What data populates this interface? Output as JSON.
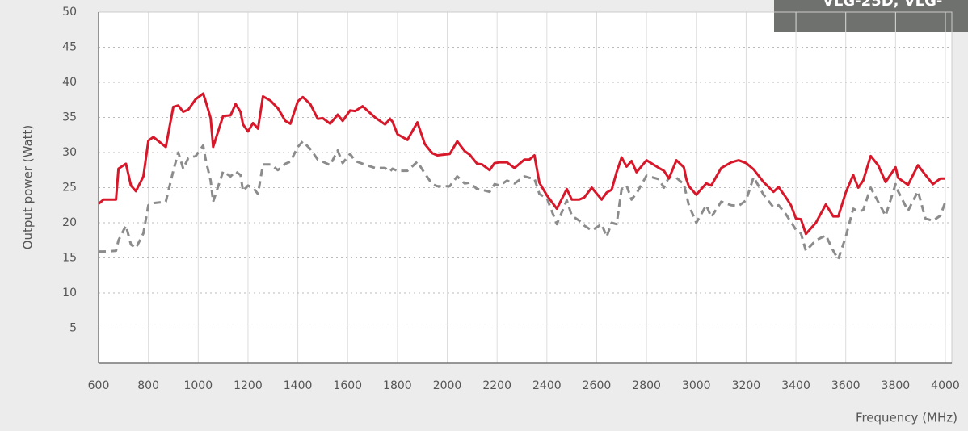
{
  "chart_data": {
    "type": "line",
    "banner": "VLG-25D, VLG-",
    "y_label": "Output power (Watt)",
    "x_label": "Frequency (MHz)",
    "x": [
      600,
      620,
      670,
      680,
      710,
      730,
      750,
      780,
      800,
      820,
      870,
      900,
      920,
      940,
      960,
      990,
      1020,
      1030,
      1050,
      1060,
      1100,
      1130,
      1150,
      1170,
      1180,
      1200,
      1220,
      1240,
      1260,
      1290,
      1320,
      1350,
      1370,
      1400,
      1420,
      1450,
      1480,
      1500,
      1530,
      1560,
      1580,
      1610,
      1630,
      1660,
      1710,
      1750,
      1770,
      1780,
      1800,
      1840,
      1880,
      1910,
      1940,
      1960,
      2010,
      2040,
      2070,
      2090,
      2120,
      2140,
      2170,
      2190,
      2210,
      2240,
      2270,
      2310,
      2330,
      2350,
      2370,
      2400,
      2440,
      2480,
      2500,
      2530,
      2550,
      2580,
      2620,
      2640,
      2660,
      2680,
      2700,
      2720,
      2740,
      2760,
      2800,
      2850,
      2870,
      2890,
      2920,
      2950,
      2960,
      2970,
      3000,
      3040,
      3060,
      3100,
      3140,
      3170,
      3200,
      3230,
      3270,
      3310,
      3330,
      3360,
      3380,
      3400,
      3420,
      3440,
      3480,
      3520,
      3550,
      3570,
      3600,
      3630,
      3650,
      3670,
      3700,
      3730,
      3760,
      3800,
      3810,
      3850,
      3890,
      3920,
      3950,
      3980,
      4000
    ],
    "series": [
      {
        "color": "#d7182a",
        "dash": false,
        "values": [
          22.7,
          23.3,
          23.3,
          27.7,
          28.4,
          25.3,
          24.5,
          26.6,
          31.7,
          32.2,
          30.8,
          36.5,
          36.7,
          35.8,
          36.1,
          37.6,
          38.4,
          37.3,
          34.9,
          30.8,
          35.2,
          35.3,
          36.9,
          35.8,
          34.0,
          33.0,
          34.2,
          33.4,
          38.0,
          37.4,
          36.3,
          34.5,
          34.1,
          37.3,
          37.9,
          36.9,
          34.8,
          34.9,
          34.1,
          35.4,
          34.5,
          36.0,
          35.9,
          36.6,
          35.0,
          34.0,
          34.8,
          34.4,
          32.6,
          31.8,
          34.3,
          31.2,
          29.9,
          29.6,
          29.8,
          31.6,
          30.2,
          29.7,
          28.4,
          28.3,
          27.5,
          28.5,
          28.6,
          28.6,
          27.8,
          29.0,
          29.0,
          29.6,
          25.7,
          23.9,
          22.0,
          24.8,
          23.3,
          23.3,
          23.6,
          25.0,
          23.3,
          24.3,
          24.7,
          27.2,
          29.3,
          28.0,
          28.8,
          27.2,
          28.9,
          27.8,
          27.4,
          26.3,
          28.9,
          27.9,
          26.2,
          25.2,
          24.0,
          25.6,
          25.3,
          27.8,
          28.6,
          28.9,
          28.5,
          27.6,
          25.8,
          24.4,
          25.1,
          23.6,
          22.5,
          20.6,
          20.5,
          18.4,
          20.0,
          22.6,
          20.9,
          20.9,
          24.3,
          26.8,
          25.0,
          26.0,
          29.5,
          28.2,
          25.8,
          27.9,
          26.4,
          25.4,
          28.2,
          26.8,
          25.5,
          26.3,
          26.3
        ]
      },
      {
        "color": "#8c8c8c",
        "dash": true,
        "values": [
          15.9,
          15.9,
          16.0,
          17.5,
          19.6,
          16.9,
          16.4,
          18.5,
          22.5,
          22.8,
          23.0,
          27.4,
          30.0,
          27.7,
          29.2,
          29.5,
          31.0,
          29.0,
          26.0,
          23.0,
          27.3,
          26.6,
          27.3,
          26.8,
          24.5,
          25.3,
          25.0,
          24.1,
          28.3,
          28.3,
          27.5,
          28.4,
          28.7,
          30.8,
          31.6,
          30.5,
          29.0,
          28.7,
          28.2,
          30.3,
          28.5,
          29.8,
          28.8,
          28.4,
          27.8,
          27.8,
          27.3,
          27.7,
          27.4,
          27.4,
          28.7,
          27.0,
          25.5,
          25.2,
          25.2,
          26.6,
          25.6,
          25.7,
          24.8,
          24.7,
          24.4,
          25.5,
          25.3,
          26.0,
          25.6,
          26.6,
          26.4,
          26.3,
          24.1,
          23.5,
          19.8,
          23.2,
          21.0,
          20.3,
          19.6,
          18.9,
          19.8,
          18.0,
          20.0,
          19.8,
          24.8,
          25.3,
          23.3,
          24.2,
          26.7,
          26.2,
          25.0,
          26.5,
          26.4,
          25.5,
          24.0,
          22.5,
          20.0,
          22.5,
          20.8,
          23.0,
          22.5,
          22.4,
          23.2,
          26.5,
          24.0,
          22.2,
          22.5,
          21.2,
          20.1,
          19.0,
          18.5,
          16.0,
          17.5,
          18.2,
          16.0,
          14.8,
          18.0,
          22.0,
          21.6,
          21.8,
          25.0,
          23.0,
          21.0,
          25.5,
          24.5,
          21.7,
          24.5,
          20.6,
          20.3,
          21.0,
          23.0
        ]
      }
    ],
    "xlim": [
      600,
      4000
    ],
    "xticks": [
      600,
      800,
      1000,
      1200,
      1400,
      1600,
      1800,
      2000,
      2200,
      2400,
      2600,
      2800,
      3000,
      3200,
      3400,
      3600,
      3800,
      4000
    ],
    "ylim": [
      0,
      50
    ],
    "yticks": [
      5,
      10,
      15,
      20,
      25,
      30,
      35,
      40,
      45,
      50
    ],
    "grid": true
  }
}
